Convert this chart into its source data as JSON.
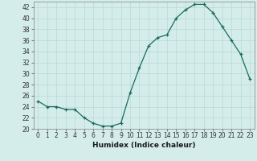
{
  "x": [
    0,
    1,
    2,
    3,
    4,
    5,
    6,
    7,
    8,
    9,
    10,
    11,
    12,
    13,
    14,
    15,
    16,
    17,
    18,
    19,
    20,
    21,
    22,
    23
  ],
  "y": [
    25,
    24,
    24,
    23.5,
    23.5,
    22,
    21,
    20.5,
    20.5,
    21,
    26.5,
    31,
    35,
    36.5,
    37,
    40,
    41.5,
    42.5,
    42.5,
    41,
    38.5,
    36,
    33.5,
    29
  ],
  "line_color": "#1a6b5a",
  "marker": "+",
  "marker_color": "#1a6b5a",
  "bg_color": "#d4edea",
  "grid_color": "#b8d8d4",
  "xlabel": "Humidex (Indice chaleur)",
  "ylim": [
    20,
    43
  ],
  "xlim": [
    -0.5,
    23.5
  ],
  "yticks": [
    20,
    22,
    24,
    26,
    28,
    30,
    32,
    34,
    36,
    38,
    40,
    42
  ],
  "xticks": [
    0,
    1,
    2,
    3,
    4,
    5,
    6,
    7,
    8,
    9,
    10,
    11,
    12,
    13,
    14,
    15,
    16,
    17,
    18,
    19,
    20,
    21,
    22,
    23
  ],
  "tick_fontsize": 5.5,
  "xlabel_fontsize": 6.5
}
